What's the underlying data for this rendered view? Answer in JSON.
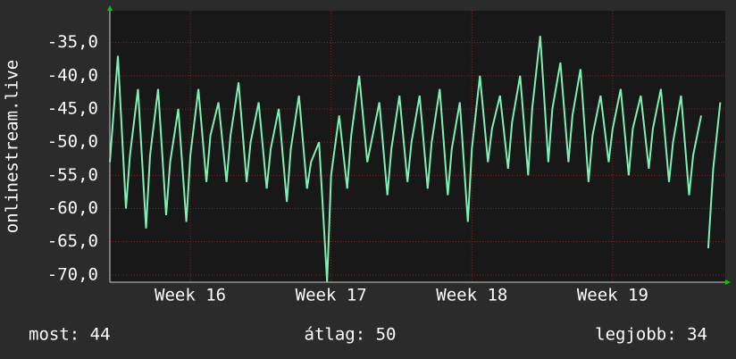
{
  "chart_data": {
    "type": "line",
    "y_label": "onlinestream.live",
    "color": "#7ff0b4",
    "grid": true,
    "ylim": [
      -71.1,
      -30.2
    ],
    "yticks": [
      {
        "value": -70,
        "label": "-70,0"
      },
      {
        "value": -65,
        "label": "-65,0"
      },
      {
        "value": -60,
        "label": "-60,0"
      },
      {
        "value": -55,
        "label": "-55,0"
      },
      {
        "value": -50,
        "label": "-50,0"
      },
      {
        "value": -45,
        "label": "-45,0"
      },
      {
        "value": -40,
        "label": "-40,0"
      },
      {
        "value": -35,
        "label": "-35,0"
      }
    ],
    "xlim": [
      0,
      30.6
    ],
    "xticks": [
      {
        "value": 4,
        "label": "Week 16"
      },
      {
        "value": 11,
        "label": "Week 17"
      },
      {
        "value": 18,
        "label": "Week 18"
      },
      {
        "value": 25,
        "label": "Week 19"
      }
    ],
    "x": [
      0,
      0.4,
      0.8,
      1,
      1.4,
      1.8,
      2,
      2.4,
      2.8,
      3,
      3.4,
      3.8,
      4,
      4.4,
      4.8,
      5,
      5.4,
      5.8,
      6,
      6.4,
      6.8,
      7,
      7.4,
      7.8,
      8,
      8.4,
      8.8,
      9,
      9.4,
      9.8,
      10,
      10.4,
      10.8,
      11,
      11.4,
      11.8,
      12,
      12.4,
      12.8,
      13,
      13.4,
      13.8,
      14,
      14.4,
      14.8,
      15,
      15.4,
      15.8,
      16,
      16.4,
      16.8,
      17,
      17.4,
      17.8,
      18,
      18.4,
      18.8,
      19,
      19.4,
      19.8,
      20,
      20.4,
      20.8,
      21,
      21.4,
      21.8,
      22,
      22.4,
      22.8,
      23,
      23.4,
      23.8,
      24,
      24.4,
      24.8,
      25,
      25.4,
      25.8,
      26,
      26.4,
      26.8,
      27,
      27.4,
      27.8,
      28,
      28.4,
      28.8,
      29,
      29.4,
      29.6,
      29.75,
      30,
      30.35
    ],
    "values": [
      -53,
      -37,
      -60,
      -52,
      -42,
      -63,
      -52,
      -42,
      -61,
      -53,
      -45,
      -62,
      -52,
      -42,
      -56,
      -49,
      -44,
      -56,
      -49,
      -41,
      -56,
      -50,
      -44,
      -57,
      -51,
      -45,
      -59,
      -51,
      -43,
      -57,
      -53,
      -50,
      -71,
      -55,
      -46,
      -57,
      -49,
      -40,
      -53,
      -50,
      -44,
      -58,
      -51,
      -43,
      -56,
      -50,
      -43,
      -57,
      -50,
      -42,
      -58,
      -51,
      -44,
      -62,
      -51,
      -40,
      -53,
      -48,
      -43,
      -54,
      -47,
      -40,
      -55,
      -45,
      -34,
      -53,
      -45,
      -38,
      -53,
      -46,
      -39,
      -56,
      -49,
      -43,
      -53,
      -48,
      -42,
      -55,
      -48,
      -43,
      -54,
      -48,
      -42,
      -56,
      -50,
      -43,
      -58,
      -52,
      -46,
      null,
      -66,
      -54,
      -44
    ],
    "annotations": [
      "most: 44",
      "átlag: 50",
      "legjobb: 34"
    ]
  }
}
